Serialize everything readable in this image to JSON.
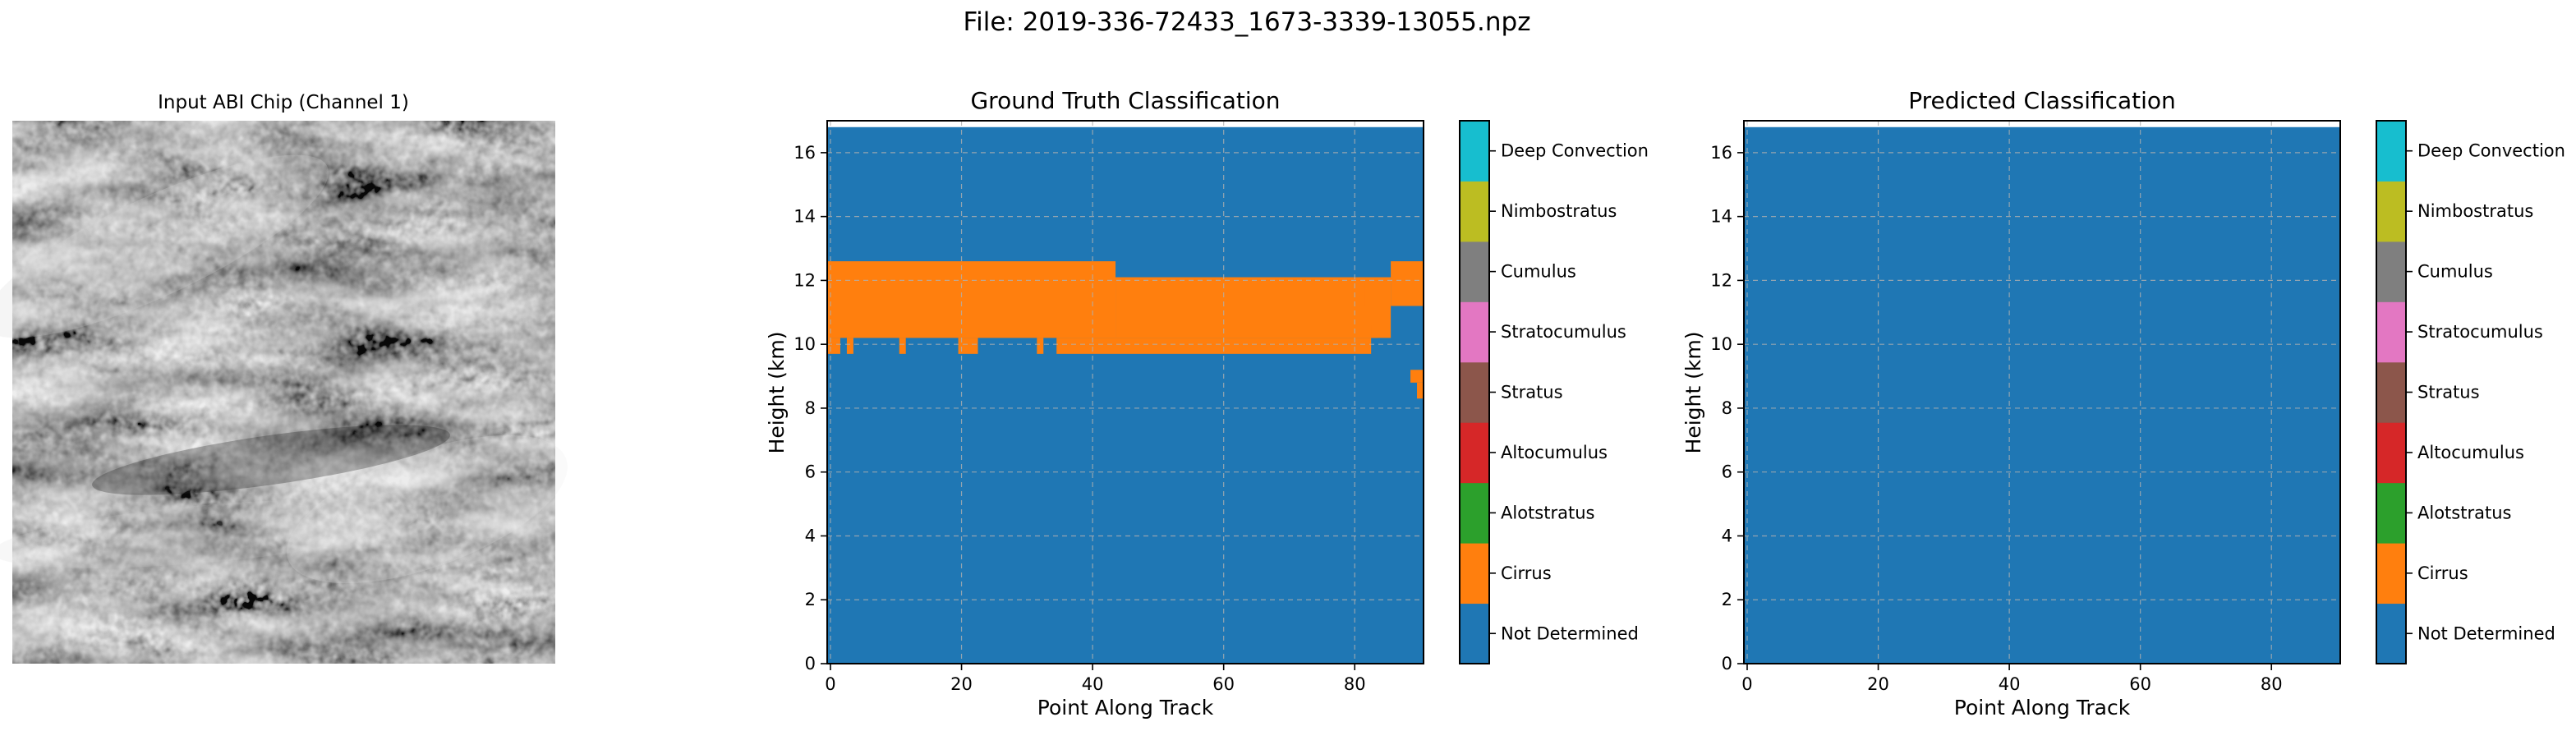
{
  "figure": {
    "suptitle": "File: 2019-336-72433_1673-3339-13055.npz"
  },
  "chart_data": [
    {
      "type": "image",
      "title": "Input ABI Chip (Channel 1)",
      "colormap": "gray",
      "axis": "off"
    },
    {
      "type": "heatmap",
      "title": "Ground Truth Classification",
      "xlabel": "Point Along Track",
      "ylabel": "Height (km)",
      "xlim": [
        -0.5,
        90.5
      ],
      "ylim": [
        0,
        17
      ],
      "xticks": [
        0,
        20,
        40,
        60,
        80
      ],
      "yticks": [
        0,
        2,
        4,
        6,
        8,
        10,
        12,
        14,
        16
      ],
      "grid": true,
      "data_top_km": 16.8,
      "background_class": "Not Determined",
      "regions": [
        {
          "class": "Cirrus",
          "x": [
            -0.5,
            43.5
          ],
          "y": [
            10.2,
            12.6
          ]
        },
        {
          "class": "Cirrus",
          "x": [
            43.5,
            85.5
          ],
          "y": [
            10.2,
            12.1
          ]
        },
        {
          "class": "Cirrus",
          "x": [
            85.5,
            90.5
          ],
          "y": [
            11.2,
            12.6
          ]
        },
        {
          "class": "Cirrus",
          "x": [
            80.5,
            81.5
          ],
          "y": [
            11.2,
            12.1
          ]
        },
        {
          "class": "Cirrus",
          "x": [
            34.5,
            82.5
          ],
          "y": [
            9.7,
            10.2
          ]
        },
        {
          "class": "Cirrus",
          "x": [
            82.5,
            83.5
          ],
          "y": [
            10.2,
            10.6
          ]
        },
        {
          "class": "Cirrus",
          "x": [
            -0.5,
            1.5
          ],
          "y": [
            9.7,
            10.2
          ]
        },
        {
          "class": "Cirrus",
          "x": [
            2.5,
            3.5
          ],
          "y": [
            9.7,
            10.2
          ]
        },
        {
          "class": "Cirrus",
          "x": [
            10.5,
            11.5
          ],
          "y": [
            9.7,
            10.2
          ]
        },
        {
          "class": "Cirrus",
          "x": [
            19.5,
            22.5
          ],
          "y": [
            9.7,
            10.2
          ]
        },
        {
          "class": "Cirrus",
          "x": [
            31.5,
            32.5
          ],
          "y": [
            9.7,
            10.2
          ]
        },
        {
          "class": "Cirrus",
          "x": [
            88.5,
            90.5
          ],
          "y": [
            8.8,
            9.2
          ]
        },
        {
          "class": "Cirrus",
          "x": [
            89.5,
            90.5
          ],
          "y": [
            8.3,
            8.8
          ]
        }
      ]
    },
    {
      "type": "heatmap",
      "title": "Predicted Classification",
      "xlabel": "Point Along Track",
      "ylabel": "Height (km)",
      "xlim": [
        -0.5,
        90.5
      ],
      "ylim": [
        0,
        17
      ],
      "xticks": [
        0,
        20,
        40,
        60,
        80
      ],
      "yticks": [
        0,
        2,
        4,
        6,
        8,
        10,
        12,
        14,
        16
      ],
      "grid": true,
      "data_top_km": 16.8,
      "background_class": "Not Determined",
      "regions": []
    }
  ],
  "legend": {
    "classes": [
      {
        "label": "Not Determined",
        "color": "#1f77b4"
      },
      {
        "label": "Cirrus",
        "color": "#ff7f0e"
      },
      {
        "label": "Alotstratus",
        "color": "#2ca02c"
      },
      {
        "label": "Altocumulus",
        "color": "#d62728"
      },
      {
        "label": "Stratus",
        "color": "#8c564b"
      },
      {
        "label": "Stratocumulus",
        "color": "#e377c2"
      },
      {
        "label": "Cumulus",
        "color": "#7f7f7f"
      },
      {
        "label": "Nimbostratus",
        "color": "#bcbd22"
      },
      {
        "label": "Deep Convection",
        "color": "#17becf"
      }
    ]
  }
}
